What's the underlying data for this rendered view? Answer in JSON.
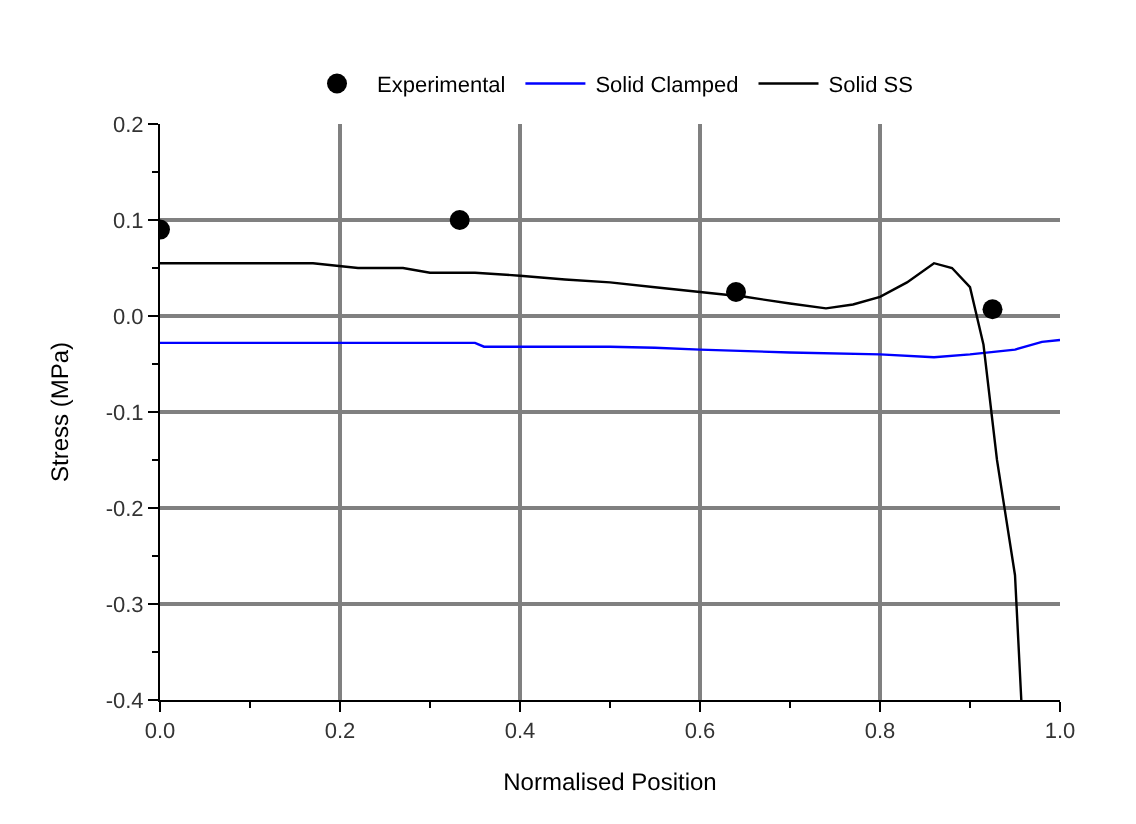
{
  "chart_data": {
    "type": "line",
    "xlabel": "Normalised Position",
    "ylabel": "Stress (MPa)",
    "xlim": [
      0,
      1
    ],
    "xticks": [
      {
        "value": 0,
        "label": "0.0"
      },
      0.2,
      0.4,
      0.6,
      0.8,
      {
        "value": 1,
        "label": "1.0"
      }
    ],
    "ylim": [
      -0.4,
      0.2
    ],
    "yticks": [
      -0.4,
      -0.3,
      -0.2,
      -0.1,
      {
        "value": 0,
        "label": "0.0"
      },
      0.1,
      0.2
    ],
    "grid": true,
    "legend": "top",
    "series": [
      {
        "name": "Experimental",
        "type": "scatter",
        "marker": "circle",
        "color": "#000000",
        "x": [
          0,
          0.333,
          0.64,
          0.925
        ],
        "values": [
          0.09,
          0.1,
          0.025,
          0.007
        ]
      },
      {
        "name": "Solid Clamped",
        "color": "#0000ff",
        "marker": "none",
        "line_style": "solid",
        "x": [
          0,
          0.1,
          0.2,
          0.35,
          0.36,
          0.5,
          0.55,
          0.6,
          0.7,
          0.8,
          0.86,
          0.9,
          0.95,
          0.98,
          1.0
        ],
        "values": [
          -0.028,
          -0.028,
          -0.028,
          -0.028,
          -0.032,
          -0.032,
          -0.033,
          -0.035,
          -0.038,
          -0.04,
          -0.043,
          -0.04,
          -0.035,
          -0.027,
          -0.025
        ]
      },
      {
        "name": "Solid SS",
        "color": "#000000",
        "marker": "none",
        "line_style": "solid",
        "x": [
          0,
          0.17,
          0.22,
          0.27,
          0.3,
          0.35,
          0.4,
          0.45,
          0.5,
          0.55,
          0.6,
          0.65,
          0.7,
          0.74,
          0.77,
          0.8,
          0.83,
          0.86,
          0.88,
          0.9,
          0.915,
          0.93,
          0.95,
          0.957
        ],
        "values": [
          0.055,
          0.055,
          0.05,
          0.05,
          0.045,
          0.045,
          0.042,
          0.038,
          0.035,
          0.03,
          0.025,
          0.02,
          0.013,
          0.008,
          0.012,
          0.02,
          0.035,
          0.055,
          0.05,
          0.03,
          -0.03,
          -0.15,
          -0.27,
          -0.4
        ]
      }
    ]
  }
}
